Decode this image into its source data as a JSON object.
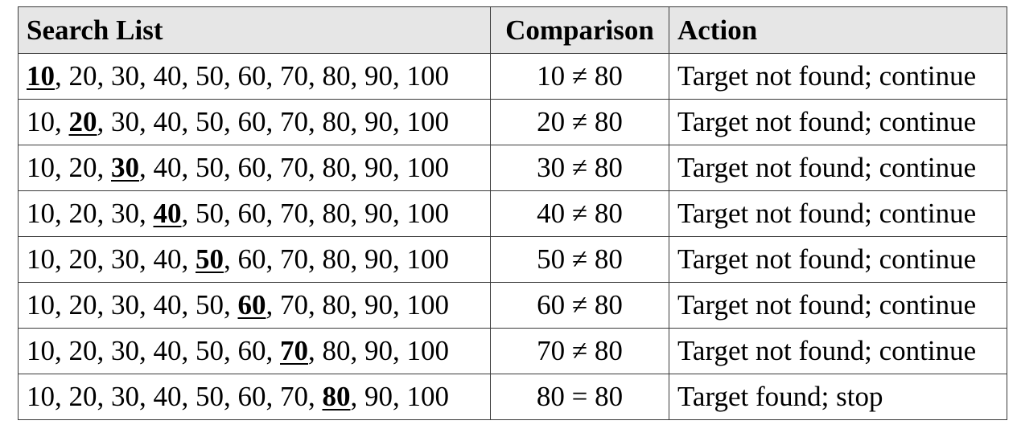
{
  "headers": [
    "Search List",
    "Comparison",
    "Action"
  ],
  "list": [
    10,
    20,
    30,
    40,
    50,
    60,
    70,
    80,
    90,
    100
  ],
  "rows": [
    {
      "highlight_index": 0,
      "comparison": "10 ≠ 80",
      "action": "Target not found; continue"
    },
    {
      "highlight_index": 1,
      "comparison": "20 ≠ 80",
      "action": "Target not found; continue"
    },
    {
      "highlight_index": 2,
      "comparison": "30 ≠ 80",
      "action": "Target not found; continue"
    },
    {
      "highlight_index": 3,
      "comparison": "40 ≠ 80",
      "action": "Target not found; continue"
    },
    {
      "highlight_index": 4,
      "comparison": "50 ≠ 80",
      "action": "Target not found; continue"
    },
    {
      "highlight_index": 5,
      "comparison": "60 ≠ 80",
      "action": "Target not found; continue"
    },
    {
      "highlight_index": 6,
      "comparison": "70 ≠ 80",
      "action": "Target not found; continue"
    },
    {
      "highlight_index": 7,
      "comparison": "80 = 80",
      "action": "Target found; stop"
    }
  ],
  "colors": {
    "header_bg": "#e6e6e6",
    "border": "#3a3a3a",
    "text": "#000000"
  }
}
